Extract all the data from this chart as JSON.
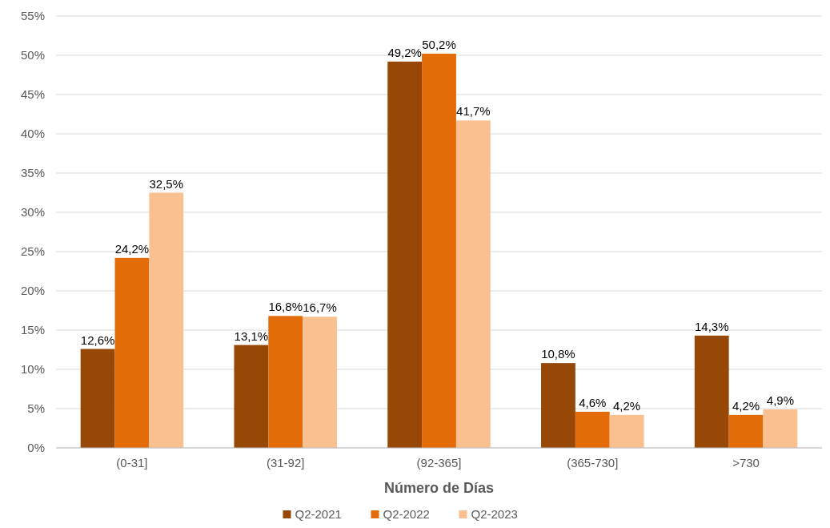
{
  "chart_data": {
    "type": "bar",
    "xlabel": "Número de Días",
    "categories": [
      "(0-31]",
      "(31-92]",
      "(92-365]",
      "(365-730]",
      ">730"
    ],
    "series": [
      {
        "name": "Q2-2021",
        "color": "#974706",
        "values": [
          12.6,
          13.1,
          49.2,
          10.8,
          14.3
        ],
        "value_labels": [
          "12,6%",
          "13,1%",
          "49,2%",
          "10,8%",
          "14,3%"
        ]
      },
      {
        "name": "Q2-2022",
        "color": "#e36c09",
        "values": [
          24.2,
          16.8,
          50.2,
          4.6,
          4.2
        ],
        "value_labels": [
          "24,2%",
          "16,8%",
          "50,2%",
          "4,6%",
          "4,2%"
        ]
      },
      {
        "name": "Q2-2023",
        "color": "#fac090",
        "values": [
          32.5,
          16.7,
          41.7,
          4.2,
          4.9
        ],
        "value_labels": [
          "32,5%",
          "16,7%",
          "41,7%",
          "4,2%",
          "4,9%"
        ]
      }
    ],
    "ylim": [
      0,
      55
    ],
    "yticks": [
      {
        "value": 0,
        "label": "0%"
      },
      {
        "value": 5,
        "label": "5%"
      },
      {
        "value": 10,
        "label": "10%"
      },
      {
        "value": 15,
        "label": "15%"
      },
      {
        "value": 20,
        "label": "20%"
      },
      {
        "value": 25,
        "label": "25%"
      },
      {
        "value": 30,
        "label": "30%"
      },
      {
        "value": 35,
        "label": "35%"
      },
      {
        "value": 40,
        "label": "40%"
      },
      {
        "value": 45,
        "label": "45%"
      },
      {
        "value": 50,
        "label": "50%"
      },
      {
        "value": 55,
        "label": "55%"
      }
    ],
    "grid": "y",
    "legend": "bottom"
  }
}
